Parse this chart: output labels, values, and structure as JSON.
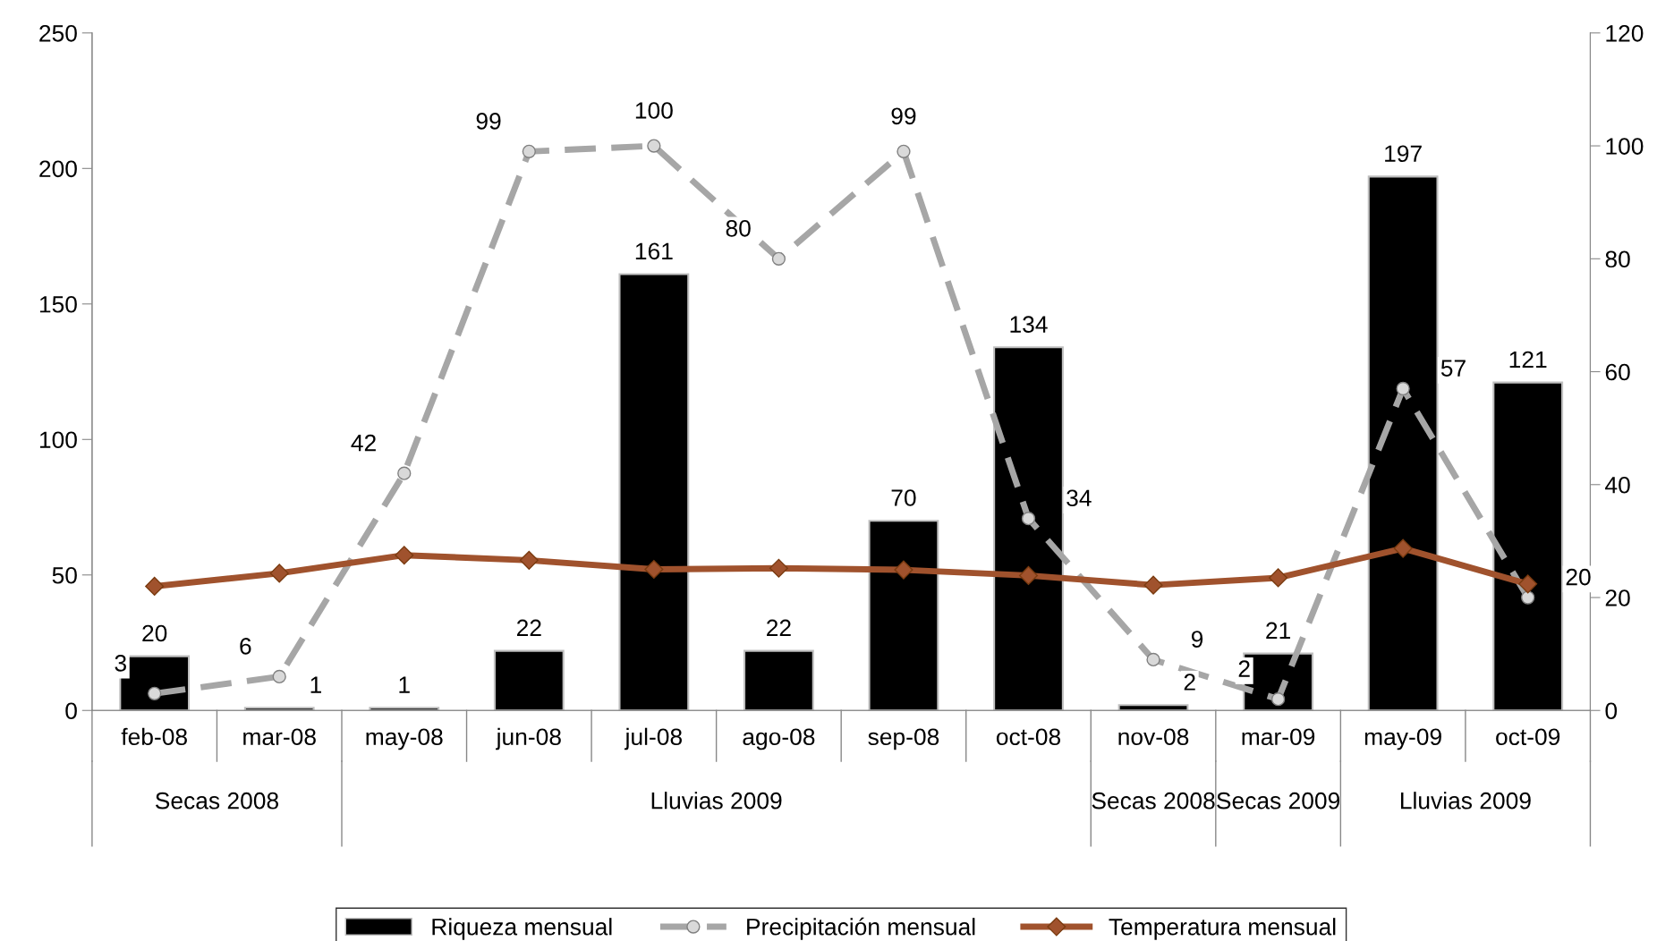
{
  "chart_data": {
    "type": "bar",
    "categories": [
      "feb-08",
      "mar-08",
      "may-08",
      "jun-08",
      "jul-08",
      "ago-08",
      "sep-08",
      "oct-08",
      "nov-08",
      "mar-09",
      "may-09",
      "oct-09"
    ],
    "series": [
      {
        "name": "Riqueza mensual",
        "color": "#000000",
        "values": [
          20,
          1,
          1,
          22,
          161,
          22,
          70,
          134,
          2,
          21,
          197,
          121
        ],
        "data_labels": true
      },
      {
        "name": "Precipitación mensual",
        "type": "line",
        "axis": "y2",
        "color": "#a6a6a6",
        "marker": "circle",
        "line_style": "dashed",
        "values": [
          3,
          6,
          42,
          99,
          100,
          80,
          99,
          34,
          9,
          2,
          57,
          20
        ],
        "data_labels": true
      },
      {
        "name": "Temperatura mensual",
        "type": "line",
        "axis": "y2",
        "color": "#a0522d",
        "marker": "diamond",
        "line_style": "solid",
        "values": [
          22,
          24.3,
          27.5,
          26.6,
          25,
          25.2,
          24.9,
          23.9,
          22.2,
          23.5,
          28.7,
          22.4
        ]
      }
    ],
    "ylim": [
      0,
      250
    ],
    "yticks": [
      0,
      50,
      100,
      150,
      200,
      250
    ],
    "y2lim": [
      0,
      120
    ],
    "y2ticks": [
      0,
      20,
      40,
      60,
      80,
      100,
      120
    ],
    "annotations": [
      "Secas 2008",
      "Lluvias 2009",
      "Secas 2008",
      "Secas 2009",
      "Lluvias 2009"
    ],
    "grid": false,
    "legend": "bottom"
  }
}
